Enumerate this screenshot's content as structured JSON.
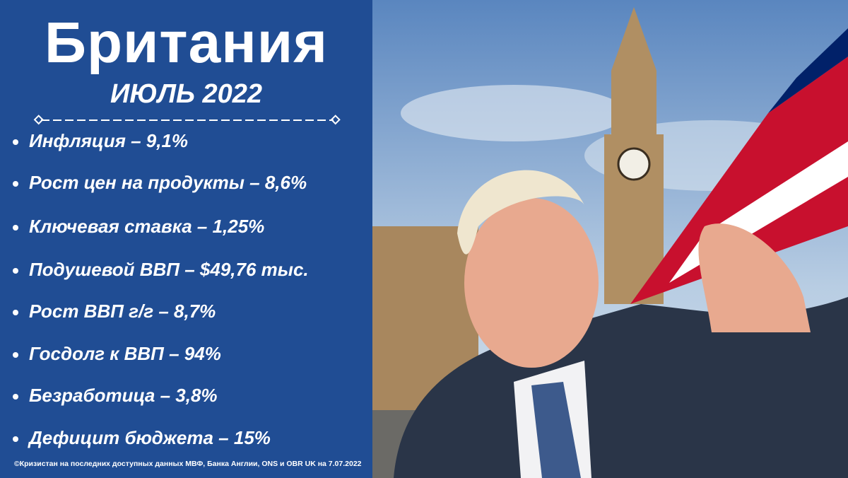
{
  "header": {
    "title": "Британия",
    "subtitle": "ИЮЛЬ 2022"
  },
  "items": [
    "Инфляция – 9,1%",
    "Рост цен на продукты – 8,6%",
    "Ключевая ставка – 1,25%",
    "Подушевой ВВП – $49,76 тыс.",
    "Рост ВВП г/г – 8,7%",
    "Госдолг к ВВП – 94%",
    "Безработица – 3,8%",
    "Дефицит бюджета – 15%"
  ],
  "footer": {
    "source": "©Кризистан на последних доступных данных МВФ, Банка Англии, ONS и OBR UK на 7.07.2022"
  }
}
